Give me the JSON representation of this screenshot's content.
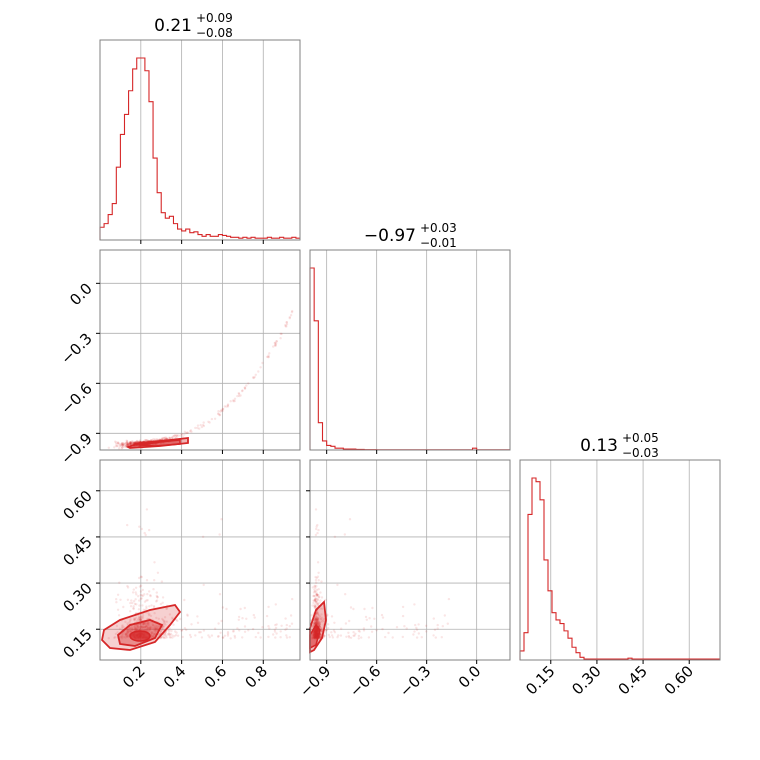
{
  "figure": {
    "accent_color": "#d62728",
    "frame_color": "#808080",
    "grid_color": "#b0b0b0"
  },
  "chart_data": [
    {
      "type": "histogram",
      "panel": "p00",
      "title_value": "0.21",
      "title_plus": "+0.09",
      "title_minus": "−0.08",
      "xlim": [
        0.0,
        0.98
      ],
      "x_ticks": [
        0.2,
        0.4,
        0.6,
        0.8
      ],
      "x_tick_labels": [
        "0.2",
        "0.4",
        "0.6",
        "0.8"
      ],
      "bin_edges_start": 0.0,
      "bin_width": 0.02,
      "counts": [
        0.07,
        0.09,
        0.14,
        0.2,
        0.4,
        0.58,
        0.69,
        0.82,
        0.94,
        1.0,
        1.0,
        0.93,
        0.76,
        0.45,
        0.26,
        0.15,
        0.12,
        0.13,
        0.09,
        0.06,
        0.05,
        0.06,
        0.04,
        0.045,
        0.03,
        0.02,
        0.03,
        0.02,
        0.02,
        0.03,
        0.025,
        0.02,
        0.015,
        0.015,
        0.01,
        0.015,
        0.01,
        0.015,
        0.01,
        0.01,
        0.01,
        0.015,
        0.01,
        0.01,
        0.015,
        0.01,
        0.01,
        0.015,
        0.01
      ]
    },
    {
      "type": "scatter",
      "panel": "p10",
      "xlim": [
        0.0,
        0.98
      ],
      "ylim": [
        -1.0,
        0.2
      ],
      "x_ticks": [
        0.2,
        0.4,
        0.6,
        0.8
      ],
      "y_ticks": [
        0.0,
        -0.3,
        -0.6,
        -0.9
      ],
      "y_tick_labels": [
        "0.0",
        "−0.3",
        "−0.6",
        "−0.9"
      ],
      "relation": "y = -0.97 + 0.95 * x^3 (approx.)"
    },
    {
      "type": "histogram",
      "panel": "p11",
      "title_value": "−0.97",
      "title_plus": "+0.03",
      "title_minus": "−0.01",
      "xlim": [
        -1.0,
        0.2
      ],
      "x_ticks": [
        -0.9,
        -0.6,
        -0.3,
        0.0
      ],
      "x_tick_labels": [
        "−0.9",
        "−0.6",
        "−0.3",
        "0.0"
      ],
      "bin_edges_start": -1.0,
      "bin_width": 0.025,
      "counts": [
        1.0,
        0.71,
        0.15,
        0.05,
        0.025,
        0.02,
        0.01,
        0.01,
        0.005,
        0.005,
        0.005,
        0.003,
        0.003,
        0.002,
        0.002,
        0.002,
        0.001,
        0.001,
        0.001,
        0.001,
        0.001,
        0.001,
        0.001,
        0.001,
        0.001,
        0.001,
        0.001,
        0.001,
        0.001,
        0.001,
        0.001,
        0.001,
        0.001,
        0.001,
        0.001,
        0.001,
        0.001,
        0.001,
        0.001,
        0.01,
        0.001,
        0.001,
        0.001,
        0.001,
        0.001,
        0.001,
        0.001,
        0.001
      ]
    },
    {
      "type": "scatter",
      "panel": "p20",
      "xlim": [
        0.0,
        0.98
      ],
      "ylim": [
        0.05,
        0.7
      ],
      "x_ticks": [
        0.2,
        0.4,
        0.6,
        0.8
      ],
      "x_tick_labels": [
        "0.2",
        "0.4",
        "0.6",
        "0.8"
      ],
      "y_ticks": [
        0.15,
        0.3,
        0.45,
        0.6
      ],
      "y_tick_labels": [
        "0.15",
        "0.30",
        "0.45",
        "0.60"
      ]
    },
    {
      "type": "scatter",
      "panel": "p21",
      "xlim": [
        -1.0,
        0.2
      ],
      "ylim": [
        0.05,
        0.7
      ],
      "x_ticks": [
        -0.9,
        -0.6,
        -0.3,
        0.0
      ],
      "x_tick_labels": [
        "−0.9",
        "−0.6",
        "−0.3",
        "0.0"
      ],
      "y_ticks": [
        0.15,
        0.3,
        0.45,
        0.6
      ]
    },
    {
      "type": "histogram",
      "panel": "p22",
      "title_value": "0.13",
      "title_plus": "+0.05",
      "title_minus": "−0.03",
      "xlim": [
        0.05,
        0.7
      ],
      "x_ticks": [
        0.15,
        0.3,
        0.45,
        0.6
      ],
      "x_tick_labels": [
        "0.15",
        "0.30",
        "0.45",
        "0.60"
      ],
      "bin_edges_start": 0.05,
      "bin_width": 0.013,
      "counts": [
        0.05,
        0.15,
        0.8,
        1.0,
        0.98,
        0.88,
        0.55,
        0.38,
        0.26,
        0.22,
        0.2,
        0.16,
        0.12,
        0.07,
        0.04,
        0.015,
        0.005,
        0.005,
        0.005,
        0.005,
        0.005,
        0.005,
        0.005,
        0.005,
        0.005,
        0.005,
        0.005,
        0.01,
        0.005,
        0.005,
        0.005,
        0.005,
        0.005,
        0.005,
        0.005,
        0.005,
        0.005,
        0.005,
        0.005,
        0.005,
        0.005,
        0.005,
        0.005,
        0.005,
        0.005,
        0.005,
        0.005,
        0.005,
        0.005,
        0.005
      ]
    }
  ]
}
